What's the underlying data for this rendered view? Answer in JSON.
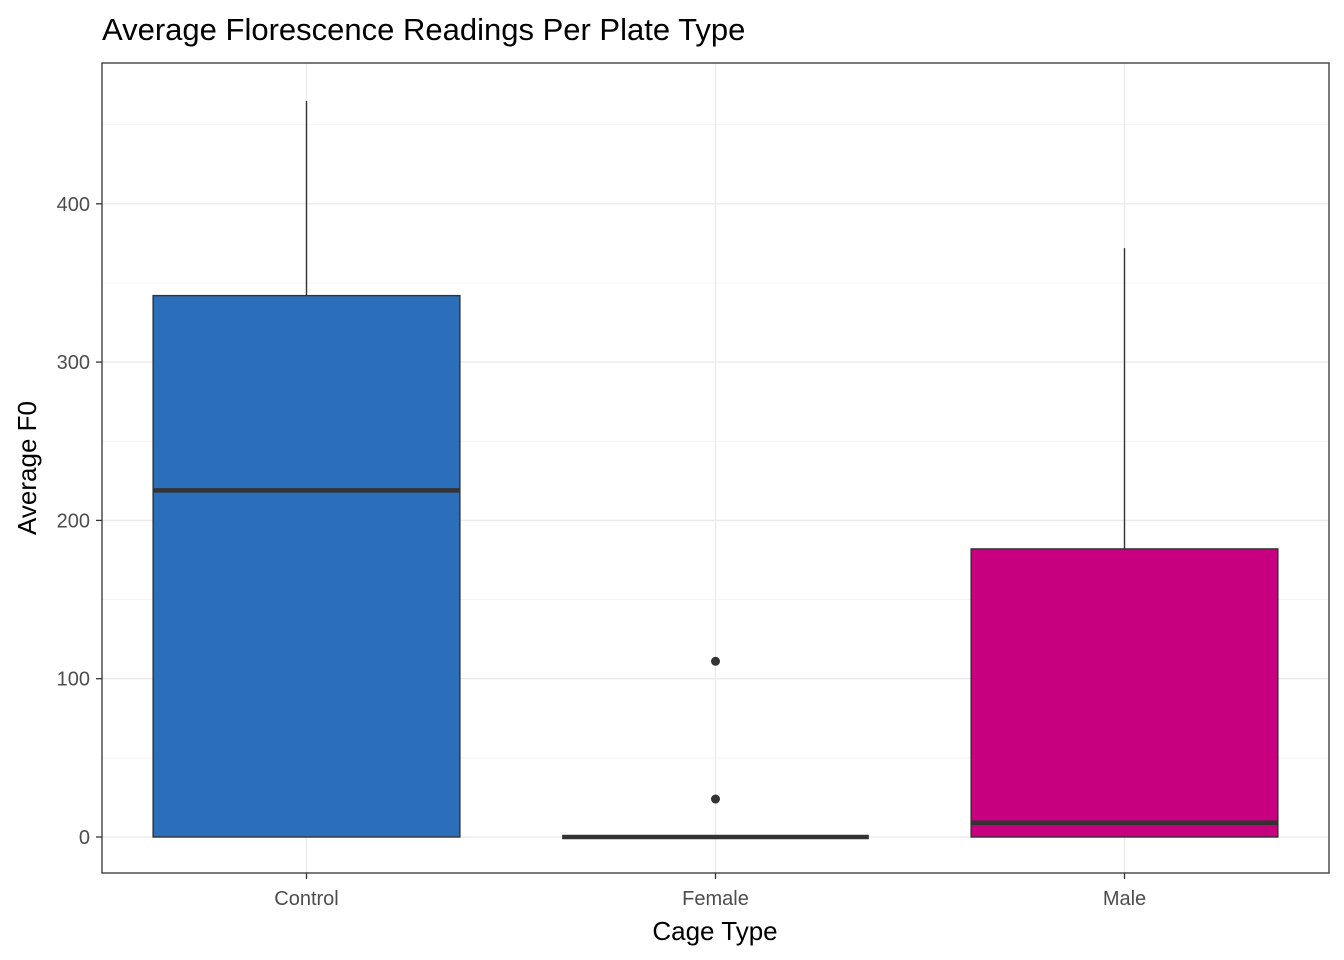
{
  "chart_data": {
    "type": "boxplot",
    "title": "Average Florescence Readings Per Plate Type",
    "xlabel": "Cage Type",
    "ylabel": "Average F0",
    "ylim": [
      -22,
      487
    ],
    "yticks": [
      0,
      100,
      200,
      300,
      400
    ],
    "grid": true,
    "legend": "none",
    "categories": [
      "Control",
      "Female",
      "Male"
    ],
    "boxes": [
      {
        "category": "Control",
        "min": 0,
        "q1": 0,
        "median": 219,
        "q3": 342,
        "max": 465,
        "outliers": [],
        "fill": "#2B6EBA"
      },
      {
        "category": "Female",
        "min": 0,
        "q1": 0,
        "median": 0,
        "q3": 0,
        "max": 0,
        "outliers": [
          24,
          111
        ],
        "fill": "#C0C0C0"
      },
      {
        "category": "Male",
        "min": 0,
        "q1": 0,
        "median": 9,
        "q3": 182,
        "max": 372,
        "outliers": [],
        "fill": "#C6007E"
      }
    ],
    "colors": {
      "outline": "#333333",
      "grid_major": "#ebebeb",
      "grid_minor": "#f4f4f4",
      "panel_border": "#333333",
      "tick_text": "#4d4d4d"
    }
  }
}
